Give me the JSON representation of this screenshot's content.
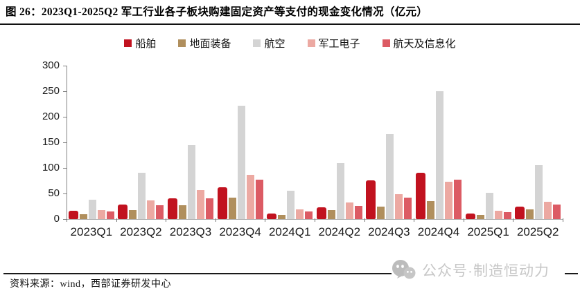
{
  "figure": {
    "title": "图 26：2023Q1-2025Q2 军工行业各子板块购建固定资产等支付的现金变化情况（亿元）",
    "source_label": "资料来源：wind，西部证券研发中心",
    "watermark": {
      "text": "公众号·制造恒动力",
      "icon": "wechat-icon"
    }
  },
  "chart_data": {
    "type": "bar",
    "title": "2023Q1-2025Q2 军工行业各子板块购建固定资产等支付的现金变化情况",
    "unit": "亿元",
    "categories": [
      "2023Q1",
      "2023Q2",
      "2023Q3",
      "2023Q4",
      "2024Q1",
      "2024Q2",
      "2024Q3",
      "2024Q4",
      "2025Q1",
      "2025Q2"
    ],
    "series": [
      {
        "name": "船舶",
        "color": "#c1121f",
        "values": [
          16,
          29,
          41,
          62,
          11,
          23,
          76,
          91,
          11,
          24
        ]
      },
      {
        "name": "地面装备",
        "color": "#b08f5d",
        "values": [
          10,
          17,
          27,
          42,
          8,
          17,
          24,
          35,
          8,
          19
        ]
      },
      {
        "name": "航空",
        "color": "#d4d4d4",
        "values": [
          38,
          91,
          144,
          222,
          56,
          110,
          166,
          250,
          51,
          105
        ]
      },
      {
        "name": "军工电子",
        "color": "#eca9a2",
        "values": [
          17,
          36,
          57,
          87,
          19,
          33,
          49,
          73,
          16,
          34
        ]
      },
      {
        "name": "航天及信息化",
        "color": "#dc5b64",
        "values": [
          15,
          27,
          41,
          77,
          15,
          26,
          42,
          77,
          13,
          28
        ]
      }
    ],
    "ylim": [
      0,
      300
    ],
    "yticks": [
      0,
      50,
      100,
      150,
      200,
      250,
      300
    ],
    "grid": false,
    "legend_position": "top"
  }
}
